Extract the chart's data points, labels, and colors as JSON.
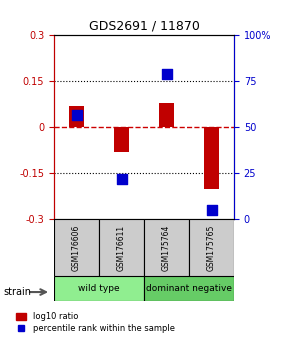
{
  "title": "GDS2691 / 11870",
  "samples": [
    "GSM176606",
    "GSM176611",
    "GSM175764",
    "GSM175765"
  ],
  "log10_ratio": [
    0.07,
    -0.08,
    0.08,
    -0.2
  ],
  "percentile_rank": [
    57,
    22,
    79,
    5
  ],
  "ylim_left": [
    -0.3,
    0.3
  ],
  "ylim_right": [
    0,
    100
  ],
  "yticks_left": [
    -0.3,
    -0.15,
    0,
    0.15,
    0.3
  ],
  "yticks_right": [
    0,
    25,
    50,
    75,
    100
  ],
  "ytick_labels_left": [
    "-0.3",
    "-0.15",
    "0",
    "0.15",
    "0.3"
  ],
  "ytick_labels_right": [
    "0",
    "25",
    "50",
    "75",
    "100%"
  ],
  "bar_color": "#c00000",
  "dot_color": "#0000cc",
  "hline_color": "#cc0000",
  "hline_style": "dashed",
  "dotted_color": "#000000",
  "groups": [
    {
      "label": "wild type",
      "samples": [
        0,
        1
      ],
      "color": "#90ee90"
    },
    {
      "label": "dominant negative",
      "samples": [
        2,
        3
      ],
      "color": "#66cc66"
    }
  ],
  "strain_label": "strain",
  "legend_bar_label": "log10 ratio",
  "legend_dot_label": "percentile rank within the sample",
  "group_label": "strain",
  "bar_width": 0.35,
  "dot_size": 60
}
